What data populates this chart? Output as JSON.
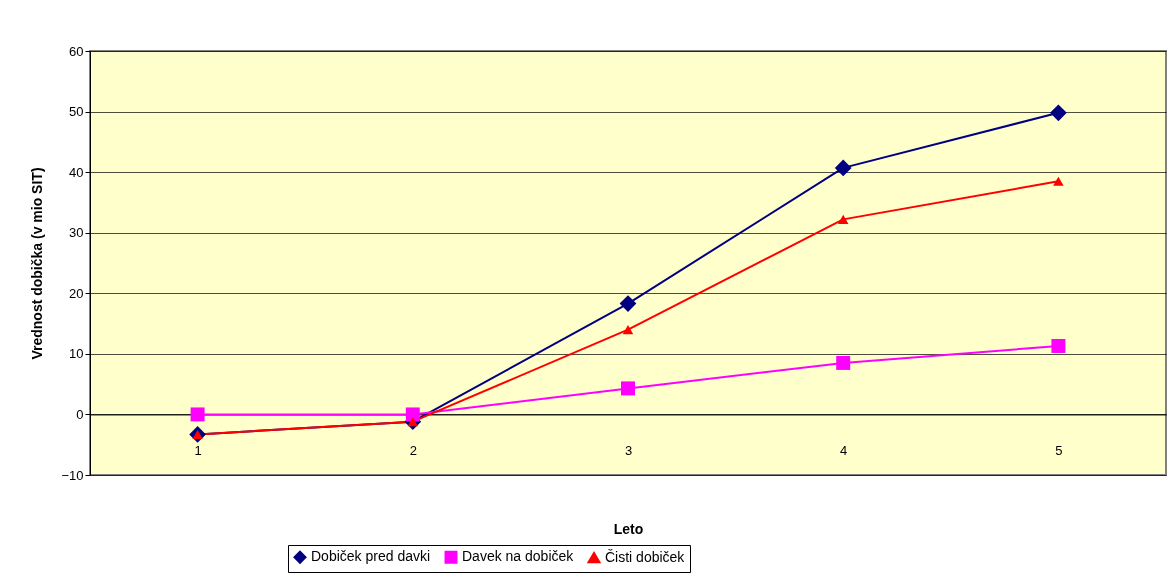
{
  "chart_data": {
    "type": "line",
    "xlabel": "Leto",
    "ylabel": "Vrednost dobička (v mio SIT)",
    "categories": [
      "1",
      "2",
      "3",
      "4",
      "5"
    ],
    "series": [
      {
        "name": "Dobiček pred davki",
        "color": "#000080",
        "marker": "diamond",
        "values": [
          -3.3,
          -1.2,
          18.3,
          40.7,
          49.8
        ]
      },
      {
        "name": "Davek na dobiček",
        "color": "#ff00ff",
        "marker": "square",
        "values": [
          0,
          0,
          4.3,
          8.5,
          11.3
        ]
      },
      {
        "name": "Čisti dobiček",
        "color": "#ff0000",
        "marker": "triangle",
        "values": [
          -3.3,
          -1.2,
          14,
          32.2,
          38.5
        ]
      }
    ],
    "ylim": [
      -10,
      60
    ],
    "yticks": [
      -10,
      0,
      10,
      20,
      30,
      40,
      50,
      60
    ],
    "grid": "y",
    "legend": "bottom",
    "line_style": "solid"
  }
}
